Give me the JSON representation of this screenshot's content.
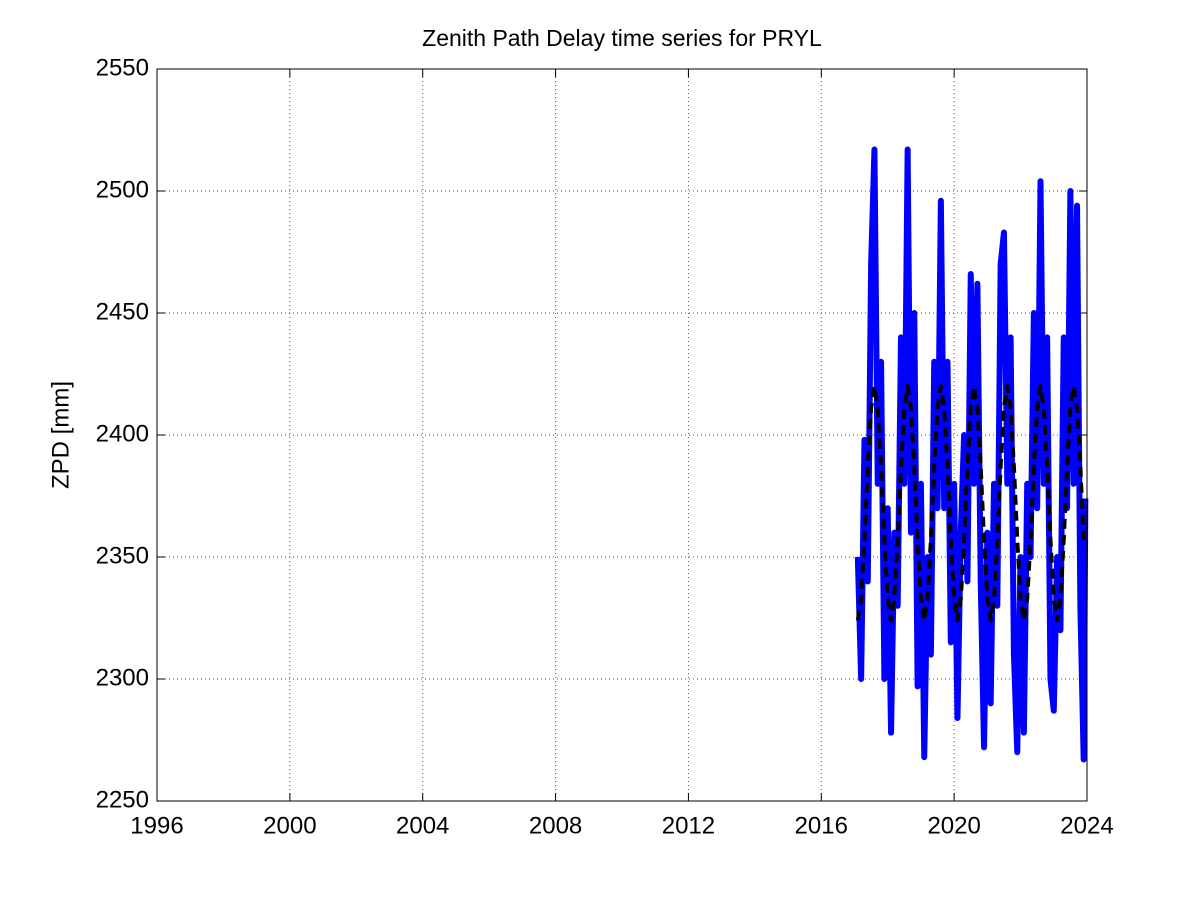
{
  "chart_data": {
    "type": "line",
    "title": "Zenith Path Delay time series for PRYL",
    "ylabel": "ZPD [mm]",
    "xlim": [
      1996,
      2024
    ],
    "xticks": [
      1996,
      2000,
      2004,
      2008,
      2012,
      2016,
      2020,
      2024
    ],
    "ylim": [
      2250,
      2550
    ],
    "yticks": [
      2250,
      2300,
      2350,
      2400,
      2450,
      2500,
      2550
    ],
    "grid": true,
    "series": [
      {
        "color": "#0000ff",
        "dash": false,
        "x": [
          2017.1,
          2017.2,
          2017.3,
          2017.4,
          2017.5,
          2017.6,
          2017.7,
          2017.8,
          2017.9,
          2018.0,
          2018.1,
          2018.2,
          2018.3,
          2018.4,
          2018.5,
          2018.6,
          2018.7,
          2018.8,
          2018.9,
          2019.0,
          2019.1,
          2019.2,
          2019.3,
          2019.4,
          2019.5,
          2019.6,
          2019.7,
          2019.8,
          2019.9,
          2020.0,
          2020.1,
          2020.2,
          2020.3,
          2020.4,
          2020.5,
          2020.6,
          2020.7,
          2020.8,
          2020.9,
          2021.0,
          2021.1,
          2021.2,
          2021.3,
          2021.4,
          2021.5,
          2021.6,
          2021.7,
          2021.8,
          2021.9,
          2022.0,
          2022.1,
          2022.2,
          2022.3,
          2022.4,
          2022.5,
          2022.6,
          2022.7,
          2022.8,
          2022.9,
          2023.0,
          2023.1,
          2023.2,
          2023.3,
          2023.4,
          2023.5,
          2023.6,
          2023.7,
          2023.8,
          2023.9,
          2023.95
        ],
        "values": [
          2350,
          2300,
          2398,
          2340,
          2470,
          2517,
          2380,
          2430,
          2300,
          2370,
          2278,
          2360,
          2330,
          2440,
          2380,
          2517,
          2360,
          2450,
          2297,
          2380,
          2268,
          2350,
          2310,
          2430,
          2370,
          2496,
          2370,
          2430,
          2315,
          2380,
          2284,
          2360,
          2400,
          2340,
          2466,
          2380,
          2462,
          2340,
          2272,
          2360,
          2290,
          2380,
          2330,
          2470,
          2483,
          2380,
          2440,
          2310,
          2270,
          2350,
          2278,
          2380,
          2350,
          2450,
          2370,
          2504,
          2380,
          2440,
          2300,
          2287,
          2350,
          2320,
          2440,
          2370,
          2500,
          2380,
          2494,
          2330,
          2267,
          2374
        ]
      },
      {
        "color": "#000000",
        "dash": true,
        "x": [
          2017.1,
          2017.2,
          2017.3,
          2017.4,
          2017.5,
          2017.6,
          2017.7,
          2017.8,
          2017.9,
          2018.0,
          2018.1,
          2018.2,
          2018.3,
          2018.4,
          2018.5,
          2018.6,
          2018.7,
          2018.8,
          2018.9,
          2019.0,
          2019.1,
          2019.2,
          2019.3,
          2019.4,
          2019.5,
          2019.6,
          2019.7,
          2019.8,
          2019.9,
          2020.0,
          2020.1,
          2020.2,
          2020.3,
          2020.4,
          2020.5,
          2020.6,
          2020.7,
          2020.8,
          2020.9,
          2021.0,
          2021.1,
          2021.2,
          2021.3,
          2021.4,
          2021.5,
          2021.6,
          2021.7,
          2021.8,
          2021.9,
          2022.0,
          2022.1,
          2022.2,
          2022.3,
          2022.4,
          2022.5,
          2022.6,
          2022.7,
          2022.8,
          2022.9,
          2023.0,
          2023.1,
          2023.2,
          2023.3,
          2023.4,
          2023.5,
          2023.6,
          2023.7,
          2023.8,
          2023.9
        ],
        "values": [
          2324,
          2333,
          2357,
          2387,
          2411,
          2420,
          2411,
          2387,
          2357,
          2333,
          2324,
          2333,
          2357,
          2387,
          2411,
          2420,
          2411,
          2387,
          2357,
          2333,
          2324,
          2333,
          2357,
          2387,
          2411,
          2420,
          2411,
          2387,
          2357,
          2333,
          2324,
          2333,
          2357,
          2387,
          2411,
          2420,
          2411,
          2387,
          2357,
          2333,
          2324,
          2333,
          2357,
          2387,
          2411,
          2420,
          2411,
          2387,
          2357,
          2333,
          2324,
          2333,
          2357,
          2387,
          2411,
          2420,
          2411,
          2387,
          2357,
          2333,
          2324,
          2333,
          2357,
          2387,
          2411,
          2420,
          2411,
          2387,
          2357
        ]
      }
    ]
  }
}
